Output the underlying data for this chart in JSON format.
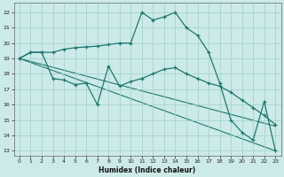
{
  "xlabel": "Humidex (Indice chaleur)",
  "xlim": [
    -0.5,
    23.5
  ],
  "ylim": [
    12.7,
    22.6
  ],
  "yticks": [
    13,
    14,
    15,
    16,
    17,
    18,
    19,
    20,
    21,
    22
  ],
  "xticks": [
    0,
    1,
    2,
    3,
    4,
    5,
    6,
    7,
    8,
    9,
    10,
    11,
    12,
    13,
    14,
    15,
    16,
    17,
    18,
    19,
    20,
    21,
    22,
    23
  ],
  "background_color": "#cceae8",
  "grid_color": "#9fcfcc",
  "line_color": "#1e7870",
  "series_main": {
    "x": [
      0,
      1,
      2,
      3,
      4,
      5,
      6,
      7,
      8,
      9,
      10,
      11,
      12,
      13,
      14,
      15,
      16,
      17,
      18,
      19,
      20,
      21,
      22,
      23
    ],
    "y": [
      19,
      19.4,
      19.4,
      19.4,
      19.6,
      19.7,
      19.75,
      19.8,
      19.9,
      20,
      20,
      22,
      21.5,
      21.7,
      22,
      21,
      20.5,
      19.4,
      17.4,
      15,
      14.2,
      13.7,
      16.2,
      13
    ]
  },
  "series_lower": {
    "x": [
      0,
      1,
      2,
      3,
      4,
      5,
      6,
      7,
      8,
      9,
      10,
      11,
      12,
      13,
      14,
      15,
      16,
      17,
      18,
      19,
      20,
      21,
      22,
      23
    ],
    "y": [
      19,
      19.4,
      19.4,
      17.7,
      17.6,
      17.3,
      17.4,
      16,
      18.5,
      17.2,
      17.5,
      17.7,
      18.0,
      18.3,
      18.4,
      18.0,
      17.7,
      17.4,
      17.2,
      16.8,
      16.3,
      15.8,
      15.3,
      14.7
    ]
  },
  "line1": {
    "x": [
      0,
      23
    ],
    "y": [
      19,
      13
    ]
  },
  "line2": {
    "x": [
      0,
      23
    ],
    "y": [
      19,
      14.6
    ]
  }
}
